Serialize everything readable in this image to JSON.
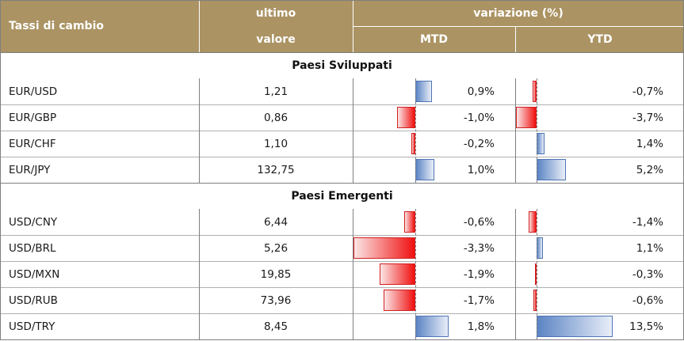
{
  "header": {
    "col1": "Tassi di cambio",
    "col2_top": "ultimo",
    "col2_bottom": "valore",
    "group": "variazione (%)",
    "mtd": "MTD",
    "ytd": "YTD"
  },
  "sections": [
    {
      "title": "Paesi Sviluppati",
      "rows": [
        {
          "pair": "EUR/USD",
          "value": "1,21",
          "mtd_label": "0,9%",
          "mtd": 0.9,
          "ytd_label": "-0,7%",
          "ytd": -0.7
        },
        {
          "pair": "EUR/GBP",
          "value": "0,86",
          "mtd_label": "-1,0%",
          "mtd": -1.0,
          "ytd_label": "-3,7%",
          "ytd": -3.7
        },
        {
          "pair": "EUR/CHF",
          "value": "1,10",
          "mtd_label": "-0,2%",
          "mtd": -0.2,
          "ytd_label": "1,4%",
          "ytd": 1.4
        },
        {
          "pair": "EUR/JPY",
          "value": "132,75",
          "mtd_label": "1,0%",
          "mtd": 1.0,
          "ytd_label": "5,2%",
          "ytd": 5.2
        }
      ]
    },
    {
      "title": "Paesi Emergenti",
      "rows": [
        {
          "pair": "USD/CNY",
          "value": "6,44",
          "mtd_label": "-0,6%",
          "mtd": -0.6,
          "ytd_label": "-1,4%",
          "ytd": -1.4
        },
        {
          "pair": "USD/BRL",
          "value": "5,26",
          "mtd_label": "-3,3%",
          "mtd": -3.3,
          "ytd_label": "1,1%",
          "ytd": 1.1
        },
        {
          "pair": "USD/MXN",
          "value": "19,85",
          "mtd_label": "-1,9%",
          "mtd": -1.9,
          "ytd_label": "-0,3%",
          "ytd": -0.3
        },
        {
          "pair": "USD/RUB",
          "value": "73,96",
          "mtd_label": "-1,7%",
          "mtd": -1.7,
          "ytd_label": "-0,6%",
          "ytd": -0.6
        },
        {
          "pair": "USD/TRY",
          "value": "8,45",
          "mtd_label": "1,8%",
          "mtd": 1.8,
          "ytd_label": "13,5%",
          "ytd": 13.5
        }
      ]
    }
  ],
  "colors": {
    "header_bg": "#ab9363",
    "positive_bar": "#5b84c4",
    "negative_bar": "#f01010"
  }
}
